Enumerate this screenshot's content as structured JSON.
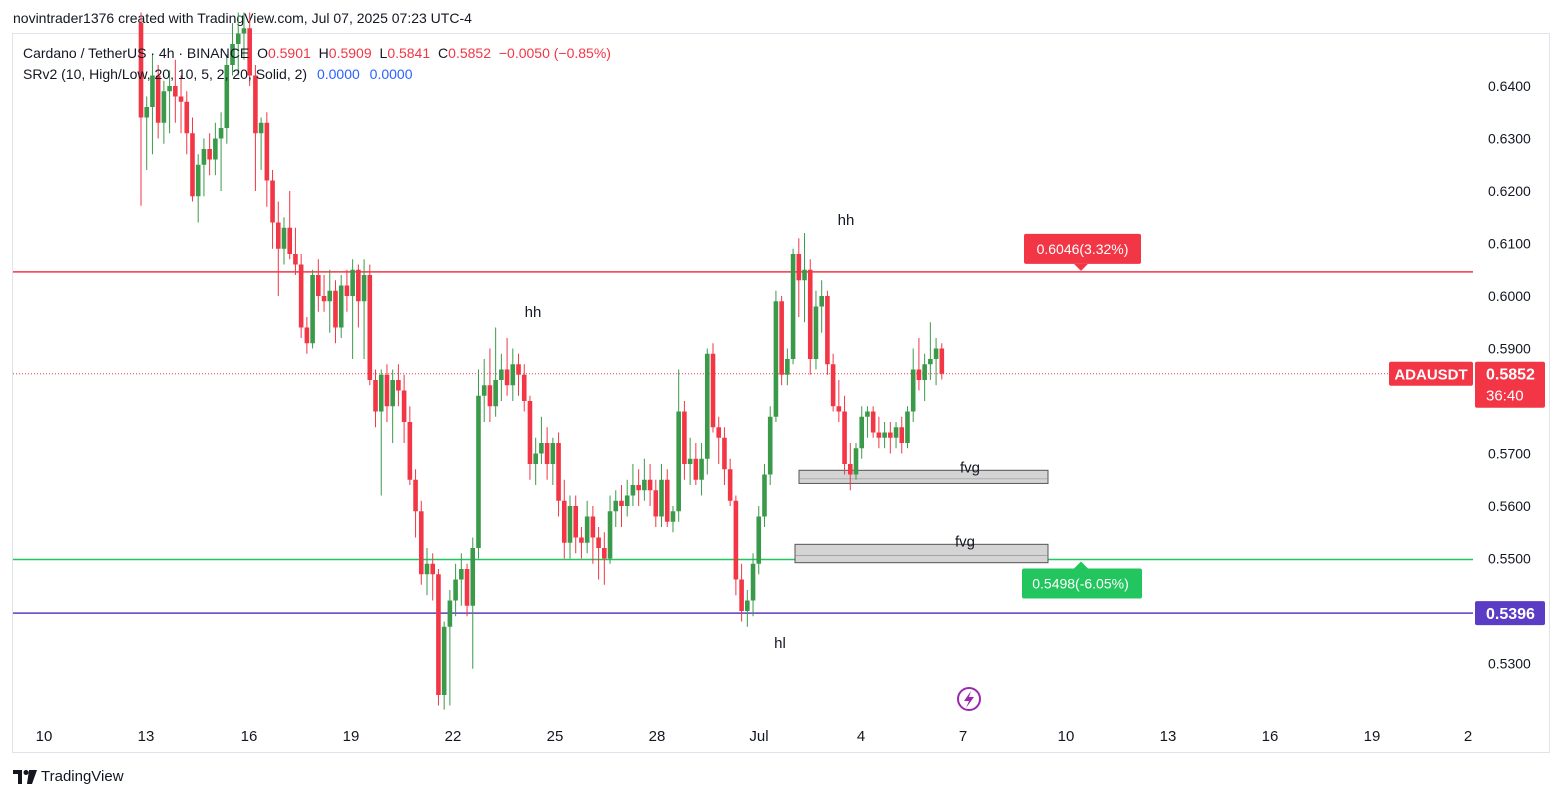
{
  "header": {
    "attribution": "novintrader1376 created with TradingView.com, Jul 07, 2025 07:23 UTC-4"
  },
  "legend": {
    "symbol_line": "Cardano / TetherUS · 4h · BINANCE",
    "o_label": "O",
    "o_value": "0.5901",
    "h_label": "H",
    "h_value": "0.5909",
    "l_label": "L",
    "l_value": "0.5841",
    "c_label": "C",
    "c_value": "0.5852",
    "change": "−0.0050 (−0.85%)",
    "indicator": "SRv2 (10, High/Low, 20, 10, 5, 2, 20, Solid, 2)",
    "indicator_v1": "0.0000",
    "indicator_v2": "0.0000"
  },
  "footer": {
    "brand": "TradingView"
  },
  "colors": {
    "up": "#26a69a",
    "up_body": "#3a9a4a",
    "down": "#f23645",
    "resistance": "#f23645",
    "support": "#22c55e",
    "low_line": "#5b3cc4",
    "price_tag": "#f23645"
  },
  "chart_data": {
    "type": "candlestick",
    "symbol": "ADAUSDT",
    "timeframe": "4h",
    "y_axis": {
      "ticks": [
        "0.6400",
        "0.6300",
        "0.6200",
        "0.6100",
        "0.6000",
        "0.5900",
        "0.5700",
        "0.5600",
        "0.5500",
        "0.5300"
      ],
      "range": [
        0.5212,
        0.654
      ]
    },
    "x_axis": {
      "ticks": [
        "10",
        "13",
        "16",
        "19",
        "22",
        "25",
        "28",
        "Jul",
        "4",
        "7",
        "10",
        "13",
        "16",
        "19",
        "2"
      ]
    },
    "last_price": {
      "label": "ADAUSDT",
      "value": "0.5852",
      "countdown": "36:40",
      "price": 0.5852
    },
    "horizontal_lines": [
      {
        "name": "resistance",
        "price": 0.6046
      },
      {
        "name": "support",
        "price": 0.5498
      },
      {
        "name": "low",
        "price": 0.5396,
        "label": "0.5396"
      }
    ],
    "target_labels": [
      {
        "text": "0.6046(3.32%)",
        "price": 0.6046,
        "side": "above"
      },
      {
        "text": "0.5498(-6.05%)",
        "price": 0.5498,
        "side": "below"
      }
    ],
    "annotations": [
      {
        "text": "hh",
        "price": 0.6135,
        "day": 3.8
      },
      {
        "text": "hh",
        "price": 0.596,
        "day": 24.3
      },
      {
        "text": "hl",
        "price": 0.533,
        "day": 31.2
      }
    ],
    "fvg_zones": [
      {
        "label": "fvg",
        "top": 0.5668,
        "bottom": 0.5643
      },
      {
        "label": "fvg",
        "top": 0.5527,
        "bottom": 0.5492
      }
    ],
    "candles": [
      {
        "o": 0.652,
        "h": 0.654,
        "l": 0.6172,
        "c": 0.634
      },
      {
        "o": 0.634,
        "h": 0.638,
        "l": 0.624,
        "c": 0.636
      },
      {
        "o": 0.636,
        "h": 0.646,
        "l": 0.627,
        "c": 0.642
      },
      {
        "o": 0.642,
        "h": 0.644,
        "l": 0.63,
        "c": 0.633
      },
      {
        "o": 0.633,
        "h": 0.641,
        "l": 0.629,
        "c": 0.639
      },
      {
        "o": 0.639,
        "h": 0.643,
        "l": 0.631,
        "c": 0.64
      },
      {
        "o": 0.64,
        "h": 0.645,
        "l": 0.633,
        "c": 0.638
      },
      {
        "o": 0.638,
        "h": 0.642,
        "l": 0.631,
        "c": 0.637
      },
      {
        "o": 0.637,
        "h": 0.639,
        "l": 0.627,
        "c": 0.631
      },
      {
        "o": 0.631,
        "h": 0.634,
        "l": 0.618,
        "c": 0.619
      },
      {
        "o": 0.619,
        "h": 0.627,
        "l": 0.614,
        "c": 0.625
      },
      {
        "o": 0.625,
        "h": 0.63,
        "l": 0.619,
        "c": 0.628
      },
      {
        "o": 0.628,
        "h": 0.631,
        "l": 0.623,
        "c": 0.626
      },
      {
        "o": 0.626,
        "h": 0.633,
        "l": 0.623,
        "c": 0.63
      },
      {
        "o": 0.63,
        "h": 0.635,
        "l": 0.62,
        "c": 0.632
      },
      {
        "o": 0.632,
        "h": 0.646,
        "l": 0.629,
        "c": 0.644
      },
      {
        "o": 0.644,
        "h": 0.652,
        "l": 0.642,
        "c": 0.648
      },
      {
        "o": 0.648,
        "h": 0.654,
        "l": 0.642,
        "c": 0.65
      },
      {
        "o": 0.65,
        "h": 0.654,
        "l": 0.645,
        "c": 0.651
      },
      {
        "o": 0.651,
        "h": 0.654,
        "l": 0.64,
        "c": 0.642
      },
      {
        "o": 0.642,
        "h": 0.644,
        "l": 0.62,
        "c": 0.631
      },
      {
        "o": 0.631,
        "h": 0.634,
        "l": 0.624,
        "c": 0.633
      },
      {
        "o": 0.633,
        "h": 0.635,
        "l": 0.617,
        "c": 0.622
      },
      {
        "o": 0.622,
        "h": 0.624,
        "l": 0.609,
        "c": 0.614
      },
      {
        "o": 0.614,
        "h": 0.618,
        "l": 0.6,
        "c": 0.609
      },
      {
        "o": 0.609,
        "h": 0.615,
        "l": 0.606,
        "c": 0.613
      },
      {
        "o": 0.613,
        "h": 0.62,
        "l": 0.607,
        "c": 0.608
      },
      {
        "o": 0.608,
        "h": 0.613,
        "l": 0.604,
        "c": 0.606
      },
      {
        "o": 0.606,
        "h": 0.608,
        "l": 0.592,
        "c": 0.594
      },
      {
        "o": 0.594,
        "h": 0.596,
        "l": 0.589,
        "c": 0.591
      },
      {
        "o": 0.591,
        "h": 0.605,
        "l": 0.59,
        "c": 0.604
      },
      {
        "o": 0.604,
        "h": 0.607,
        "l": 0.597,
        "c": 0.6
      },
      {
        "o": 0.6,
        "h": 0.604,
        "l": 0.597,
        "c": 0.599
      },
      {
        "o": 0.599,
        "h": 0.605,
        "l": 0.593,
        "c": 0.601
      },
      {
        "o": 0.601,
        "h": 0.603,
        "l": 0.591,
        "c": 0.594
      },
      {
        "o": 0.594,
        "h": 0.604,
        "l": 0.592,
        "c": 0.602
      },
      {
        "o": 0.602,
        "h": 0.605,
        "l": 0.597,
        "c": 0.6
      },
      {
        "o": 0.6,
        "h": 0.607,
        "l": 0.588,
        "c": 0.605
      },
      {
        "o": 0.605,
        "h": 0.606,
        "l": 0.594,
        "c": 0.599
      },
      {
        "o": 0.599,
        "h": 0.607,
        "l": 0.588,
        "c": 0.604
      },
      {
        "o": 0.604,
        "h": 0.606,
        "l": 0.583,
        "c": 0.584
      },
      {
        "o": 0.584,
        "h": 0.586,
        "l": 0.575,
        "c": 0.578
      },
      {
        "o": 0.578,
        "h": 0.586,
        "l": 0.562,
        "c": 0.585
      },
      {
        "o": 0.585,
        "h": 0.587,
        "l": 0.576,
        "c": 0.579
      },
      {
        "o": 0.579,
        "h": 0.586,
        "l": 0.572,
        "c": 0.584
      },
      {
        "o": 0.584,
        "h": 0.587,
        "l": 0.579,
        "c": 0.582
      },
      {
        "o": 0.582,
        "h": 0.585,
        "l": 0.572,
        "c": 0.576
      },
      {
        "o": 0.576,
        "h": 0.579,
        "l": 0.564,
        "c": 0.565
      },
      {
        "o": 0.565,
        "h": 0.567,
        "l": 0.554,
        "c": 0.559
      },
      {
        "o": 0.559,
        "h": 0.561,
        "l": 0.545,
        "c": 0.547
      },
      {
        "o": 0.547,
        "h": 0.552,
        "l": 0.543,
        "c": 0.549
      },
      {
        "o": 0.549,
        "h": 0.551,
        "l": 0.542,
        "c": 0.547
      },
      {
        "o": 0.547,
        "h": 0.548,
        "l": 0.522,
        "c": 0.524
      },
      {
        "o": 0.524,
        "h": 0.538,
        "l": 0.5212,
        "c": 0.537
      },
      {
        "o": 0.537,
        "h": 0.544,
        "l": 0.522,
        "c": 0.542
      },
      {
        "o": 0.542,
        "h": 0.549,
        "l": 0.539,
        "c": 0.546
      },
      {
        "o": 0.546,
        "h": 0.551,
        "l": 0.541,
        "c": 0.548
      },
      {
        "o": 0.548,
        "h": 0.549,
        "l": 0.539,
        "c": 0.541
      },
      {
        "o": 0.541,
        "h": 0.554,
        "l": 0.529,
        "c": 0.552
      },
      {
        "o": 0.552,
        "h": 0.586,
        "l": 0.55,
        "c": 0.581
      },
      {
        "o": 0.581,
        "h": 0.588,
        "l": 0.576,
        "c": 0.583
      },
      {
        "o": 0.583,
        "h": 0.59,
        "l": 0.576,
        "c": 0.579
      },
      {
        "o": 0.579,
        "h": 0.594,
        "l": 0.577,
        "c": 0.584
      },
      {
        "o": 0.584,
        "h": 0.589,
        "l": 0.58,
        "c": 0.586
      },
      {
        "o": 0.586,
        "h": 0.592,
        "l": 0.581,
        "c": 0.583
      },
      {
        "o": 0.583,
        "h": 0.59,
        "l": 0.58,
        "c": 0.587
      },
      {
        "o": 0.587,
        "h": 0.589,
        "l": 0.581,
        "c": 0.585
      },
      {
        "o": 0.585,
        "h": 0.587,
        "l": 0.578,
        "c": 0.58
      },
      {
        "o": 0.58,
        "h": 0.581,
        "l": 0.565,
        "c": 0.568
      },
      {
        "o": 0.568,
        "h": 0.573,
        "l": 0.564,
        "c": 0.57
      },
      {
        "o": 0.57,
        "h": 0.577,
        "l": 0.568,
        "c": 0.572
      },
      {
        "o": 0.572,
        "h": 0.575,
        "l": 0.565,
        "c": 0.568
      },
      {
        "o": 0.568,
        "h": 0.573,
        "l": 0.564,
        "c": 0.572
      },
      {
        "o": 0.572,
        "h": 0.574,
        "l": 0.558,
        "c": 0.561
      },
      {
        "o": 0.561,
        "h": 0.565,
        "l": 0.55,
        "c": 0.553
      },
      {
        "o": 0.553,
        "h": 0.562,
        "l": 0.55,
        "c": 0.56
      },
      {
        "o": 0.56,
        "h": 0.562,
        "l": 0.551,
        "c": 0.554
      },
      {
        "o": 0.554,
        "h": 0.556,
        "l": 0.55,
        "c": 0.553
      },
      {
        "o": 0.553,
        "h": 0.561,
        "l": 0.551,
        "c": 0.558
      },
      {
        "o": 0.558,
        "h": 0.56,
        "l": 0.549,
        "c": 0.554
      },
      {
        "o": 0.554,
        "h": 0.556,
        "l": 0.546,
        "c": 0.552
      },
      {
        "o": 0.552,
        "h": 0.555,
        "l": 0.545,
        "c": 0.55
      },
      {
        "o": 0.55,
        "h": 0.562,
        "l": 0.549,
        "c": 0.559
      },
      {
        "o": 0.559,
        "h": 0.563,
        "l": 0.556,
        "c": 0.561
      },
      {
        "o": 0.561,
        "h": 0.564,
        "l": 0.556,
        "c": 0.56
      },
      {
        "o": 0.56,
        "h": 0.565,
        "l": 0.558,
        "c": 0.562
      },
      {
        "o": 0.562,
        "h": 0.568,
        "l": 0.56,
        "c": 0.564
      },
      {
        "o": 0.564,
        "h": 0.567,
        "l": 0.56,
        "c": 0.563
      },
      {
        "o": 0.563,
        "h": 0.569,
        "l": 0.561,
        "c": 0.565
      },
      {
        "o": 0.565,
        "h": 0.568,
        "l": 0.56,
        "c": 0.563
      },
      {
        "o": 0.563,
        "h": 0.565,
        "l": 0.556,
        "c": 0.558
      },
      {
        "o": 0.558,
        "h": 0.568,
        "l": 0.556,
        "c": 0.565
      },
      {
        "o": 0.565,
        "h": 0.567,
        "l": 0.556,
        "c": 0.557
      },
      {
        "o": 0.557,
        "h": 0.56,
        "l": 0.555,
        "c": 0.559
      },
      {
        "o": 0.559,
        "h": 0.586,
        "l": 0.557,
        "c": 0.578
      },
      {
        "o": 0.578,
        "h": 0.58,
        "l": 0.565,
        "c": 0.568
      },
      {
        "o": 0.568,
        "h": 0.573,
        "l": 0.564,
        "c": 0.569
      },
      {
        "o": 0.569,
        "h": 0.572,
        "l": 0.564,
        "c": 0.565
      },
      {
        "o": 0.565,
        "h": 0.572,
        "l": 0.562,
        "c": 0.569
      },
      {
        "o": 0.569,
        "h": 0.59,
        "l": 0.566,
        "c": 0.589
      },
      {
        "o": 0.589,
        "h": 0.591,
        "l": 0.574,
        "c": 0.575
      },
      {
        "o": 0.575,
        "h": 0.577,
        "l": 0.568,
        "c": 0.573
      },
      {
        "o": 0.573,
        "h": 0.575,
        "l": 0.564,
        "c": 0.567
      },
      {
        "o": 0.567,
        "h": 0.569,
        "l": 0.56,
        "c": 0.561
      },
      {
        "o": 0.561,
        "h": 0.562,
        "l": 0.543,
        "c": 0.546
      },
      {
        "o": 0.546,
        "h": 0.549,
        "l": 0.538,
        "c": 0.54
      },
      {
        "o": 0.54,
        "h": 0.544,
        "l": 0.537,
        "c": 0.542
      },
      {
        "o": 0.542,
        "h": 0.551,
        "l": 0.539,
        "c": 0.549
      },
      {
        "o": 0.549,
        "h": 0.56,
        "l": 0.547,
        "c": 0.558
      },
      {
        "o": 0.558,
        "h": 0.568,
        "l": 0.556,
        "c": 0.566
      },
      {
        "o": 0.566,
        "h": 0.579,
        "l": 0.564,
        "c": 0.577
      },
      {
        "o": 0.577,
        "h": 0.601,
        "l": 0.576,
        "c": 0.599
      },
      {
        "o": 0.599,
        "h": 0.6,
        "l": 0.583,
        "c": 0.585
      },
      {
        "o": 0.585,
        "h": 0.59,
        "l": 0.583,
        "c": 0.588
      },
      {
        "o": 0.588,
        "h": 0.609,
        "l": 0.587,
        "c": 0.608
      },
      {
        "o": 0.608,
        "h": 0.611,
        "l": 0.596,
        "c": 0.603
      },
      {
        "o": 0.603,
        "h": 0.612,
        "l": 0.595,
        "c": 0.605
      },
      {
        "o": 0.605,
        "h": 0.607,
        "l": 0.585,
        "c": 0.588
      },
      {
        "o": 0.588,
        "h": 0.601,
        "l": 0.586,
        "c": 0.598
      },
      {
        "o": 0.598,
        "h": 0.603,
        "l": 0.593,
        "c": 0.6
      },
      {
        "o": 0.6,
        "h": 0.601,
        "l": 0.585,
        "c": 0.587
      },
      {
        "o": 0.587,
        "h": 0.589,
        "l": 0.578,
        "c": 0.579
      },
      {
        "o": 0.579,
        "h": 0.584,
        "l": 0.576,
        "c": 0.578
      },
      {
        "o": 0.578,
        "h": 0.581,
        "l": 0.566,
        "c": 0.568
      },
      {
        "o": 0.568,
        "h": 0.572,
        "l": 0.563,
        "c": 0.566
      },
      {
        "o": 0.566,
        "h": 0.572,
        "l": 0.565,
        "c": 0.571
      },
      {
        "o": 0.571,
        "h": 0.579,
        "l": 0.569,
        "c": 0.577
      },
      {
        "o": 0.577,
        "h": 0.579,
        "l": 0.573,
        "c": 0.578
      },
      {
        "o": 0.578,
        "h": 0.579,
        "l": 0.573,
        "c": 0.574
      },
      {
        "o": 0.574,
        "h": 0.577,
        "l": 0.571,
        "c": 0.573
      },
      {
        "o": 0.573,
        "h": 0.576,
        "l": 0.571,
        "c": 0.574
      },
      {
        "o": 0.574,
        "h": 0.576,
        "l": 0.57,
        "c": 0.573
      },
      {
        "o": 0.573,
        "h": 0.576,
        "l": 0.571,
        "c": 0.575
      },
      {
        "o": 0.575,
        "h": 0.577,
        "l": 0.57,
        "c": 0.572
      },
      {
        "o": 0.572,
        "h": 0.579,
        "l": 0.571,
        "c": 0.578
      },
      {
        "o": 0.578,
        "h": 0.59,
        "l": 0.576,
        "c": 0.586
      },
      {
        "o": 0.586,
        "h": 0.592,
        "l": 0.582,
        "c": 0.584
      },
      {
        "o": 0.584,
        "h": 0.589,
        "l": 0.58,
        "c": 0.587
      },
      {
        "o": 0.587,
        "h": 0.595,
        "l": 0.584,
        "c": 0.588
      },
      {
        "o": 0.588,
        "h": 0.592,
        "l": 0.583,
        "c": 0.59
      },
      {
        "o": 0.59,
        "h": 0.591,
        "l": 0.5841,
        "c": 0.5852
      }
    ]
  }
}
